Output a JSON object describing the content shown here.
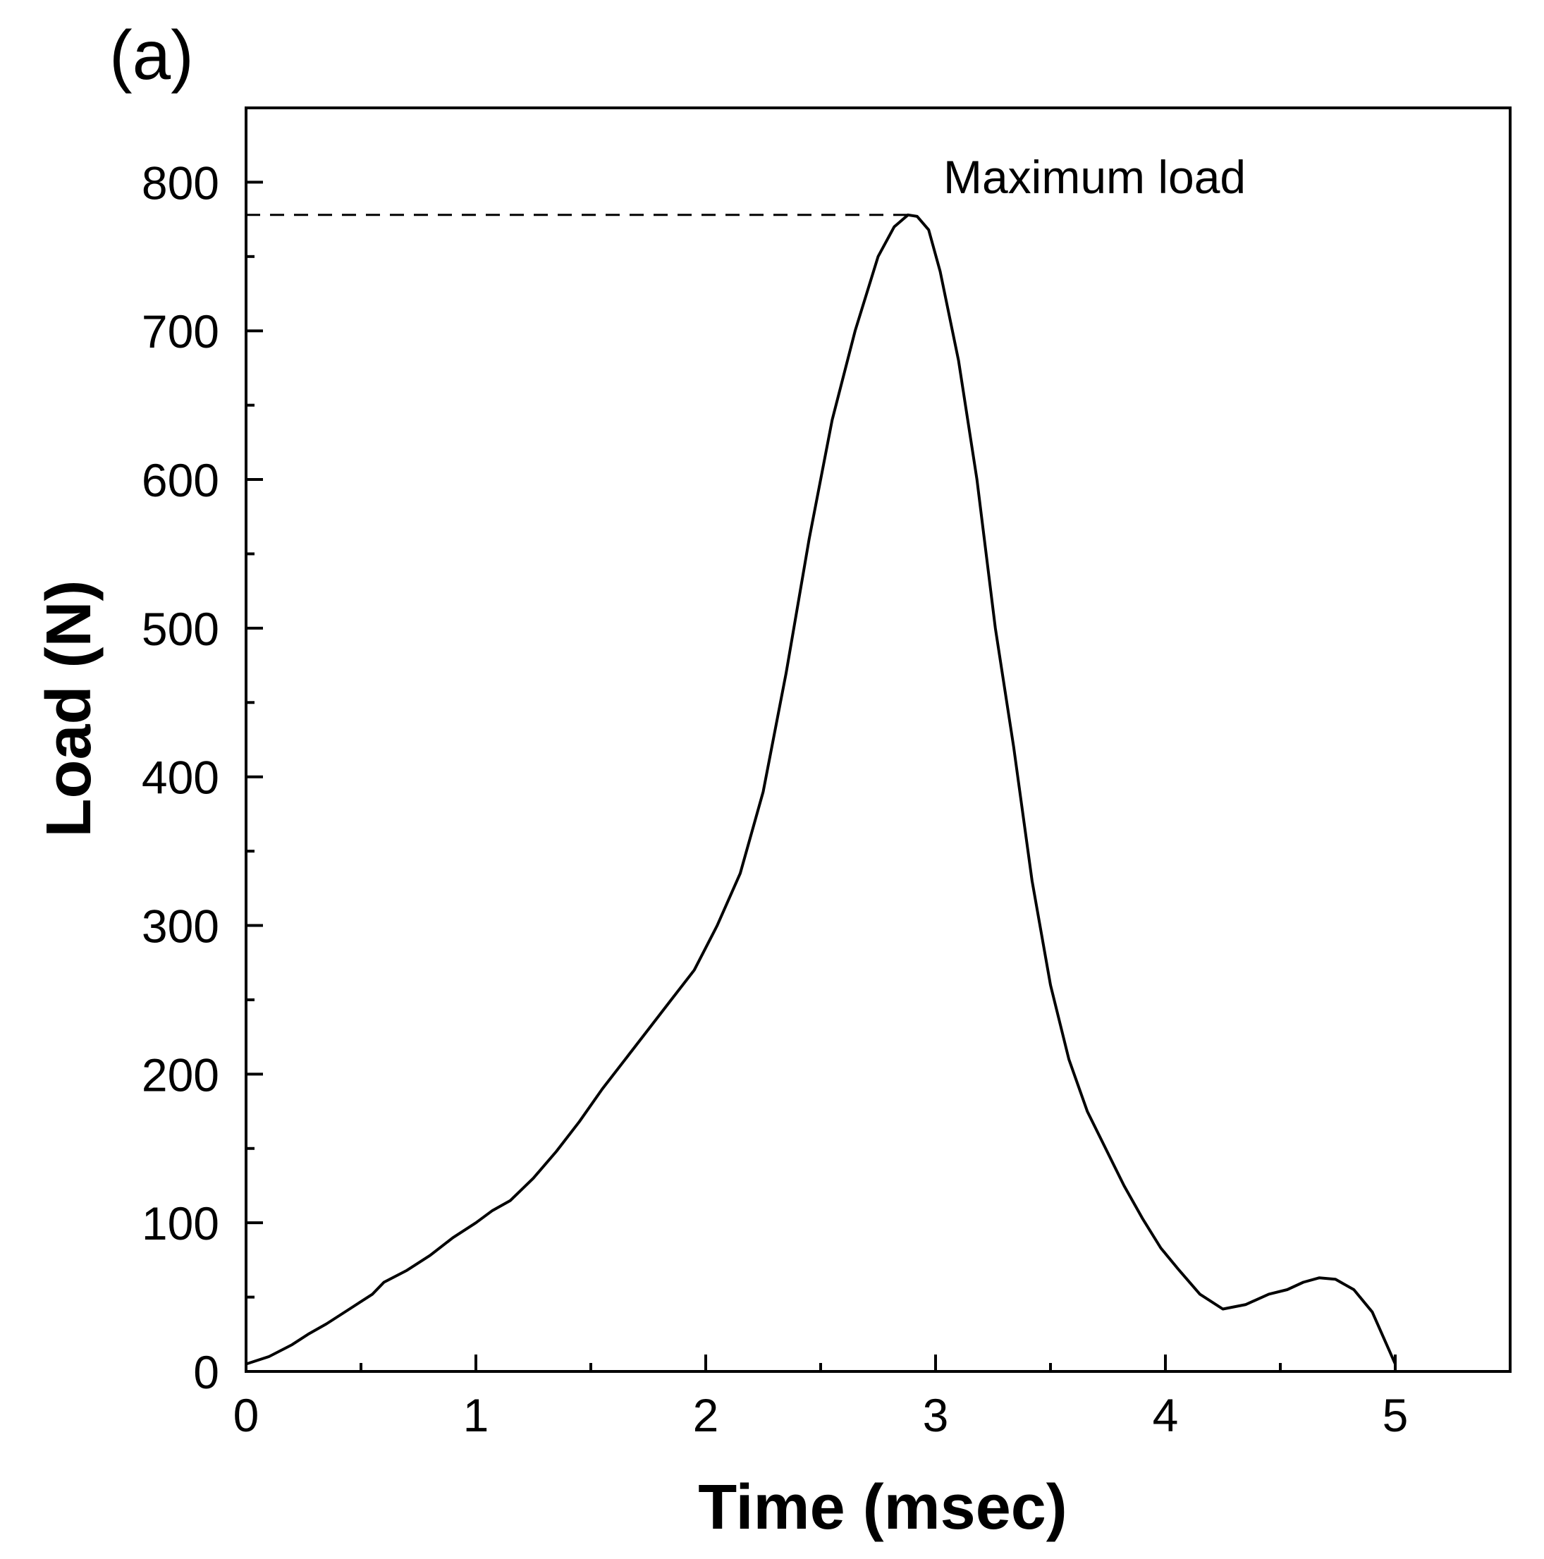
{
  "chart_data": {
    "type": "line",
    "panel_label": "(a)",
    "title": "",
    "xlabel": "Time (msec)",
    "ylabel": "Load (N)",
    "xlim": [
      0,
      5.5
    ],
    "ylim": [
      0,
      850
    ],
    "x_ticks": [
      0,
      1,
      2,
      3,
      4,
      5
    ],
    "x_tick_labels": [
      "0",
      "1",
      "2",
      "3",
      "4",
      "5"
    ],
    "x_minor_ticks": [
      0.5,
      1.5,
      2.5,
      3.5,
      4.5
    ],
    "y_ticks": [
      0,
      100,
      200,
      300,
      400,
      500,
      600,
      700,
      800
    ],
    "y_tick_labels": [
      "0",
      "100",
      "200",
      "300",
      "400",
      "500",
      "600",
      "700",
      "800"
    ],
    "y_minor_ticks": [
      50,
      150,
      250,
      350,
      450,
      550,
      650,
      750
    ],
    "grid": false,
    "legend": "none",
    "line_color": "#000000",
    "annotation": {
      "text": "Maximum load",
      "peak_x": 2.9,
      "peak_y": 778
    },
    "series": [
      {
        "x": [
          0,
          0.1,
          0.2,
          0.27,
          0.35,
          0.45,
          0.55,
          0.6,
          0.7,
          0.8,
          0.9,
          1.0,
          1.07,
          1.15,
          1.25,
          1.35,
          1.45,
          1.55,
          1.65,
          1.75,
          1.85,
          1.95,
          2.05,
          2.15,
          2.25,
          2.35,
          2.45,
          2.55,
          2.65,
          2.75,
          2.82,
          2.88,
          2.92,
          2.97,
          3.02,
          3.1,
          3.18,
          3.26,
          3.34,
          3.42,
          3.5,
          3.58,
          3.66,
          3.74,
          3.82,
          3.9,
          3.98,
          4.06,
          4.15,
          4.25,
          4.35,
          4.45,
          4.53,
          4.6,
          4.67,
          4.74,
          4.82,
          4.9,
          5.0
        ],
        "y": [
          5,
          10,
          18,
          25,
          32,
          42,
          52,
          60,
          68,
          78,
          90,
          100,
          108,
          115,
          130,
          148,
          168,
          190,
          210,
          230,
          250,
          270,
          300,
          335,
          390,
          470,
          560,
          640,
          700,
          750,
          770,
          778,
          777,
          768,
          740,
          680,
          600,
          500,
          420,
          330,
          260,
          210,
          175,
          150,
          125,
          103,
          83,
          68,
          52,
          42,
          45,
          52,
          55,
          60,
          63,
          62,
          55,
          40,
          5
        ]
      }
    ]
  }
}
